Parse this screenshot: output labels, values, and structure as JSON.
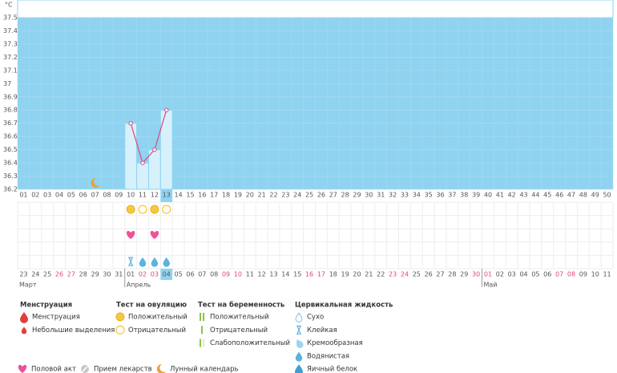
{
  "chart_data": {
    "type": "line",
    "y_unit": "°C",
    "categories": [
      "01",
      "02",
      "03",
      "04",
      "05",
      "06",
      "07",
      "08",
      "09",
      "10",
      "11",
      "12",
      "13",
      "14",
      "15",
      "16",
      "17",
      "18",
      "19",
      "20",
      "21",
      "22",
      "23",
      "24",
      "25",
      "26",
      "27",
      "28",
      "29",
      "30",
      "31",
      "32",
      "33",
      "34",
      "35",
      "36",
      "37",
      "38",
      "39",
      "40",
      "41",
      "42",
      "43",
      "44",
      "45",
      "46",
      "47",
      "48",
      "49",
      "50"
    ],
    "values": [
      null,
      null,
      null,
      null,
      null,
      null,
      null,
      null,
      null,
      36.7,
      36.4,
      36.5,
      36.8,
      null,
      null,
      null,
      null,
      null,
      null,
      null,
      null,
      null,
      null,
      null,
      null,
      null,
      null,
      null,
      null,
      null,
      null,
      null,
      null,
      null,
      null,
      null,
      null,
      null,
      null,
      null,
      null,
      null,
      null,
      null,
      null,
      null,
      null,
      null,
      null,
      null
    ],
    "color": "#e0457b",
    "ylim": [
      36.2,
      37.5
    ],
    "yticks": [
      36.2,
      36.3,
      36.4,
      36.5,
      36.6,
      36.7,
      36.8,
      36.9,
      37,
      37.1,
      37.2,
      37.3,
      37.4,
      37.5
    ],
    "grid": true,
    "selected_day": "13",
    "dates": [
      "23",
      "24",
      "25",
      "26",
      "27",
      "28",
      "29",
      "30",
      "31",
      "01",
      "02",
      "03",
      "04",
      "05",
      "06",
      "07",
      "08",
      "09",
      "10",
      "11",
      "12",
      "13",
      "14",
      "15",
      "16",
      "17",
      "18",
      "19",
      "20",
      "21",
      "22",
      "23",
      "24",
      "25",
      "26",
      "27",
      "28",
      "29",
      "30",
      "01",
      "02",
      "03",
      "04",
      "05",
      "06",
      "07",
      "08",
      "09",
      "10",
      "11"
    ],
    "weekend": [
      false,
      false,
      false,
      true,
      true,
      false,
      false,
      false,
      false,
      false,
      true,
      true,
      false,
      false,
      false,
      false,
      false,
      true,
      true,
      false,
      false,
      false,
      false,
      false,
      true,
      true,
      false,
      false,
      false,
      false,
      false,
      true,
      true,
      false,
      false,
      false,
      false,
      false,
      true,
      true,
      false,
      false,
      false,
      false,
      false,
      true,
      true,
      false,
      false,
      false
    ],
    "months": [
      "Март",
      "Апрель",
      "Май"
    ],
    "lunar": [
      "07"
    ],
    "ovulation_tests": [
      {
        "day": "10",
        "result": "positive"
      },
      {
        "day": "11",
        "result": "negative"
      },
      {
        "day": "12",
        "result": "positive"
      },
      {
        "day": "13",
        "result": "negative"
      }
    ],
    "intercourse": [
      "10",
      "12"
    ],
    "cervical_fluid": [
      {
        "day": "10",
        "kind": "sticky"
      },
      {
        "day": "11",
        "kind": "watery"
      },
      {
        "day": "12",
        "kind": "watery"
      },
      {
        "day": "13",
        "kind": "watery"
      }
    ]
  },
  "legend": [
    {
      "title": "Менструация",
      "items": [
        {
          "label": "Менструация",
          "icon": "menstruation"
        },
        {
          "label": "Небольшие выделения",
          "icon": "spotting"
        }
      ]
    },
    {
      "title": "Тест на овуляцию",
      "items": [
        {
          "label": "Положительный",
          "icon": "positive"
        },
        {
          "label": "Отрицательный",
          "icon": "negative"
        }
      ]
    },
    {
      "title": "Тест на беременность",
      "items": [
        {
          "label": "Положительный",
          "icon": "preg-positive"
        },
        {
          "label": "Отрицательный",
          "icon": "preg-negative"
        },
        {
          "label": "Слабоположительный",
          "icon": "preg-weak"
        }
      ]
    },
    {
      "title": "Цервикальная жидкость",
      "items": [
        {
          "label": "Сухо",
          "icon": "dry"
        },
        {
          "label": "Клейкая",
          "icon": "sticky"
        },
        {
          "label": "Кремообразная",
          "icon": "creamy"
        },
        {
          "label": "Водянистая",
          "icon": "watery"
        },
        {
          "label": "Яичный белок",
          "icon": "eggwhite"
        }
      ]
    }
  ],
  "legend_extra": [
    {
      "label": "Половой акт",
      "icon": "heart"
    },
    {
      "label": "Прием лекарств",
      "icon": "pill"
    },
    {
      "label": "Лунный календарь",
      "icon": "moon"
    }
  ]
}
